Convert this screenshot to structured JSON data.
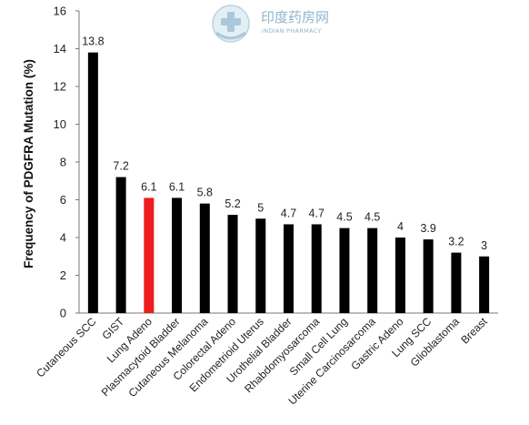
{
  "watermark": {
    "name_cn": "印度药房网",
    "name_en": "INDIAN PHARMACY"
  },
  "chart_data": {
    "type": "bar",
    "title": "",
    "xlabel": "",
    "ylabel": "Frequency of PDGFRA Mutation (%)",
    "ylim": [
      0,
      16
    ],
    "yticks": [
      0,
      2,
      4,
      6,
      8,
      10,
      12,
      14,
      16
    ],
    "grid": false,
    "categories": [
      "Cutaneous SCC",
      "GIST",
      "Lung Adeno",
      "Plasmacytoid Bladder",
      "Cutaneous Melanoma",
      "Colorectal Adeno",
      "Endometrioid Uterus",
      "Urothelial Bladder",
      "Rhabdomyosarcoma",
      "Small Cell Lung",
      "Uterine Carcinosarcoma",
      "Gastric Adeno",
      "Lung SCC",
      "Glioblastoma",
      "Breast"
    ],
    "values": [
      13.8,
      7.2,
      6.1,
      6.1,
      5.8,
      5.2,
      5,
      4.7,
      4.7,
      4.5,
      4.5,
      4,
      3.9,
      3.2,
      3
    ],
    "value_labels": [
      "13.8",
      "7.2",
      "6.1",
      "6.1",
      "5.8",
      "5.2",
      "5",
      "4.7",
      "4.7",
      "4.5",
      "4.5",
      "4",
      "3.9",
      "3.2",
      "3"
    ],
    "bar_color": "#000000",
    "highlight_color": "#ee1c1c",
    "highlight_index": 2
  }
}
